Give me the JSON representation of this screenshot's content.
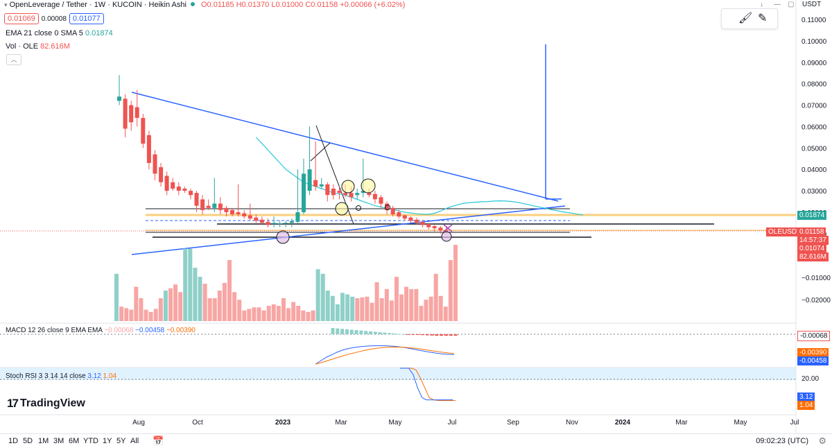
{
  "header": {
    "title": "OpenLeverage / Tether · 1W · KUCOIN · Heikin Ashi",
    "open": "O0.01185",
    "high": "H0.01370",
    "low": "L0.01000",
    "close": "C0.01158",
    "change": "+0.00066 (+6.02%)",
    "sell_price": "0.01069",
    "spread": "0.00008",
    "buy_price": "0.01077",
    "ema_label": "EMA 21 close 0 SMA 5",
    "ema_value": "0.01874",
    "vol_label": "Vol · OLE",
    "vol_value": "82.616M",
    "currency": "USDT"
  },
  "macd": {
    "label": "MACD 12 26 close 9 EMA EMA",
    "hist": "−0.00068",
    "macd": "−0.00458",
    "signal": "−0.00390",
    "tags": {
      "hist": "-0.00068",
      "signal": "-0.00390",
      "macd": "-0.00458"
    }
  },
  "stoch": {
    "label": "Stoch RSI 3 3 14 14 close",
    "k": "3.12",
    "d": "1.04",
    "level": "20.00"
  },
  "price_tags": {
    "ema": "0.01874",
    "symbol": "OLEUSDT",
    "last": "0.01158",
    "countdown": "14:57:37",
    "low": "0.01074",
    "vol": "82.616M"
  },
  "timeframes": [
    "1D",
    "5D",
    "1M",
    "3M",
    "6M",
    "YTD",
    "1Y",
    "5Y",
    "All"
  ],
  "clock": "09:02:23 (UTC)",
  "logo": "TradingView",
  "chart_data": {
    "type": "candlestick",
    "style": "Heikin Ashi",
    "y_ticks": [
      "0.11000",
      "0.10000",
      "0.09000",
      "0.08000",
      "0.07000",
      "0.06000",
      "0.05000",
      "0.04000",
      "0.03000",
      "0.02000",
      "0.01000",
      "−0.01000",
      "−0.02000"
    ],
    "x_ticks": [
      "Aug",
      "Oct",
      "2023",
      "Mar",
      "May",
      "Jul",
      "Sep",
      "Nov",
      "2024",
      "Mar",
      "May",
      "Jul"
    ],
    "ylim": [
      -0.025,
      0.113
    ],
    "series": [
      {
        "o": 0.072,
        "h": 0.084,
        "l": 0.07,
        "c": 0.074
      },
      {
        "o": 0.073,
        "h": 0.075,
        "l": 0.055,
        "c": 0.059
      },
      {
        "o": 0.07,
        "h": 0.072,
        "l": 0.058,
        "c": 0.062
      },
      {
        "o": 0.069,
        "h": 0.077,
        "l": 0.06,
        "c": 0.064
      },
      {
        "o": 0.064,
        "h": 0.066,
        "l": 0.05,
        "c": 0.052
      },
      {
        "o": 0.056,
        "h": 0.058,
        "l": 0.04,
        "c": 0.043
      },
      {
        "o": 0.047,
        "h": 0.049,
        "l": 0.035,
        "c": 0.038
      },
      {
        "o": 0.041,
        "h": 0.043,
        "l": 0.032,
        "c": 0.034
      },
      {
        "o": 0.037,
        "h": 0.039,
        "l": 0.028,
        "c": 0.03
      },
      {
        "o": 0.034,
        "h": 0.036,
        "l": 0.03,
        "c": 0.031
      },
      {
        "o": 0.032,
        "h": 0.034,
        "l": 0.028,
        "c": 0.03
      },
      {
        "o": 0.031,
        "h": 0.032,
        "l": 0.029,
        "c": 0.03
      },
      {
        "o": 0.03,
        "h": 0.031,
        "l": 0.026,
        "c": 0.028
      },
      {
        "o": 0.029,
        "h": 0.03,
        "l": 0.02,
        "c": 0.023
      },
      {
        "o": 0.026,
        "h": 0.028,
        "l": 0.019,
        "c": 0.021
      },
      {
        "o": 0.023,
        "h": 0.026,
        "l": 0.021,
        "c": 0.022
      },
      {
        "o": 0.022,
        "h": 0.036,
        "l": 0.02,
        "c": 0.024
      },
      {
        "o": 0.024,
        "h": 0.027,
        "l": 0.019,
        "c": 0.021
      },
      {
        "o": 0.022,
        "h": 0.023,
        "l": 0.018,
        "c": 0.02
      },
      {
        "o": 0.021,
        "h": 0.022,
        "l": 0.018,
        "c": 0.019
      },
      {
        "o": 0.02,
        "h": 0.033,
        "l": 0.018,
        "c": 0.019
      },
      {
        "o": 0.0195,
        "h": 0.021,
        "l": 0.017,
        "c": 0.018
      },
      {
        "o": 0.0185,
        "h": 0.024,
        "l": 0.016,
        "c": 0.017
      },
      {
        "o": 0.0175,
        "h": 0.019,
        "l": 0.015,
        "c": 0.016
      },
      {
        "o": 0.0165,
        "h": 0.018,
        "l": 0.014,
        "c": 0.015
      },
      {
        "o": 0.0155,
        "h": 0.017,
        "l": 0.013,
        "c": 0.014
      },
      {
        "o": 0.0145,
        "h": 0.018,
        "l": 0.013,
        "c": 0.015
      },
      {
        "o": 0.0145,
        "h": 0.016,
        "l": 0.013,
        "c": 0.0148
      },
      {
        "o": 0.0147,
        "h": 0.016,
        "l": 0.013,
        "c": 0.015
      },
      {
        "o": 0.015,
        "h": 0.017,
        "l": 0.013,
        "c": 0.0158
      },
      {
        "o": 0.0155,
        "h": 0.04,
        "l": 0.015,
        "c": 0.02
      },
      {
        "o": 0.02,
        "h": 0.045,
        "l": 0.019,
        "c": 0.038
      },
      {
        "o": 0.03,
        "h": 0.06,
        "l": 0.028,
        "c": 0.04
      },
      {
        "o": 0.035,
        "h": 0.053,
        "l": 0.03,
        "c": 0.032
      },
      {
        "o": 0.032,
        "h": 0.036,
        "l": 0.031,
        "c": 0.033
      },
      {
        "o": 0.033,
        "h": 0.034,
        "l": 0.025,
        "c": 0.028
      },
      {
        "o": 0.031,
        "h": 0.033,
        "l": 0.026,
        "c": 0.028
      },
      {
        "o": 0.03,
        "h": 0.032,
        "l": 0.026,
        "c": 0.029
      },
      {
        "o": 0.029,
        "h": 0.033,
        "l": 0.027,
        "c": 0.028
      },
      {
        "o": 0.029,
        "h": 0.032,
        "l": 0.025,
        "c": 0.027
      },
      {
        "o": 0.028,
        "h": 0.031,
        "l": 0.026,
        "c": 0.029
      },
      {
        "o": 0.029,
        "h": 0.045,
        "l": 0.027,
        "c": 0.03
      },
      {
        "o": 0.029,
        "h": 0.031,
        "l": 0.027,
        "c": 0.028
      },
      {
        "o": 0.0285,
        "h": 0.03,
        "l": 0.024,
        "c": 0.026
      },
      {
        "o": 0.027,
        "h": 0.028,
        "l": 0.022,
        "c": 0.024
      },
      {
        "o": 0.024,
        "h": 0.025,
        "l": 0.019,
        "c": 0.021
      },
      {
        "o": 0.022,
        "h": 0.023,
        "l": 0.018,
        "c": 0.019
      },
      {
        "o": 0.02,
        "h": 0.021,
        "l": 0.017,
        "c": 0.018
      },
      {
        "o": 0.0185,
        "h": 0.019,
        "l": 0.016,
        "c": 0.017
      },
      {
        "o": 0.0175,
        "h": 0.018,
        "l": 0.015,
        "c": 0.016
      },
      {
        "o": 0.0165,
        "h": 0.0175,
        "l": 0.014,
        "c": 0.015
      },
      {
        "o": 0.0155,
        "h": 0.0165,
        "l": 0.013,
        "c": 0.014
      },
      {
        "o": 0.0145,
        "h": 0.015,
        "l": 0.012,
        "c": 0.013
      },
      {
        "o": 0.0135,
        "h": 0.014,
        "l": 0.011,
        "c": 0.0125
      },
      {
        "o": 0.0128,
        "h": 0.0135,
        "l": 0.01,
        "c": 0.0115
      },
      {
        "o": 0.0118,
        "h": 0.0137,
        "l": 0.01,
        "c": 0.0116
      }
    ],
    "ema": [
      0.055,
      0.052,
      0.049,
      0.046,
      0.043,
      0.04,
      0.038,
      0.036,
      0.034,
      0.033,
      0.032,
      0.031,
      0.03,
      0.029,
      0.0285,
      0.028,
      0.027,
      0.026,
      0.025,
      0.024,
      0.023,
      0.0225,
      0.0218,
      0.0212,
      0.0206,
      0.02,
      0.0196,
      0.0193,
      0.0191,
      0.019,
      0.0195,
      0.0205,
      0.0218,
      0.0228,
      0.0236,
      0.0242,
      0.0245,
      0.0247,
      0.0249,
      0.025,
      0.0252,
      0.0253,
      0.0252,
      0.025,
      0.0246,
      0.024,
      0.0234,
      0.0228,
      0.0222,
      0.0216,
      0.021,
      0.0205,
      0.02,
      0.0196,
      0.0191,
      0.0187
    ],
    "volume": [
      0.62,
      0.19,
      0.17,
      0.15,
      0.45,
      0.3,
      0.15,
      0.12,
      0.16,
      0.3,
      0.4,
      0.43,
      0.48,
      0.38,
      0.95,
      0.95,
      0.7,
      0.58,
      0.49,
      0.3,
      0.3,
      0.4,
      0.5,
      0.8,
      0.38,
      0.28,
      0.14,
      0.16,
      0.18,
      0.18,
      0.14,
      0.2,
      0.22,
      0.2,
      0.3,
      0.17,
      0.25,
      0.2,
      0.14,
      0.12,
      0.14,
      0.68,
      0.62,
      0.4,
      0.33,
      0.22,
      0.37,
      0.35,
      0.32,
      0.3,
      0.31,
      0.32,
      0.24,
      0.51,
      0.3,
      0.42,
      0.27,
      0.58,
      0.35,
      0.45,
      0.42,
      0.42,
      0.2,
      0.28,
      0.32,
      0.62,
      0.33,
      0.19,
      0.8,
      1.0
    ],
    "macd_hist": [
      0.003,
      0.0028,
      0.0026,
      0.0024,
      0.0022,
      0.002,
      0.0018,
      0.0016,
      0.0014,
      0.0012,
      0.001,
      0.0008,
      0.0006,
      0.0004,
      0.0002,
      0.0001,
      -0.0001,
      -0.0002,
      -0.0003,
      -0.0004,
      -0.0005,
      -0.0006,
      -0.0007,
      -0.0007,
      -0.0007,
      -0.0007,
      -0.00068
    ],
    "macd_line": [
      -0.01,
      -0.008,
      -0.006,
      -0.0045,
      -0.003,
      -0.0018,
      -0.001,
      -0.0004,
      0.0,
      0.0003,
      0.0005,
      0.0006,
      0.0006,
      0.0005,
      0.0003,
      0.0,
      -0.0004,
      -0.001,
      -0.0016,
      -0.0022,
      -0.0028,
      -0.0033,
      -0.0038,
      -0.0042,
      -0.0044,
      -0.00458
    ],
    "signal_line": [
      -0.01,
      -0.0092,
      -0.0082,
      -0.0072,
      -0.0062,
      -0.0052,
      -0.0043,
      -0.0035,
      -0.0027,
      -0.002,
      -0.0014,
      -0.0009,
      -0.0005,
      -0.0003,
      -0.0002,
      -0.0002,
      -0.0003,
      -0.0006,
      -0.0009,
      -0.0013,
      -0.0018,
      -0.0023,
      -0.0028,
      -0.0032,
      -0.0036,
      -0.0039
    ],
    "stoch_k": [
      100,
      100,
      100,
      80,
      40,
      10,
      3,
      3,
      3,
      3,
      3,
      3,
      3.12
    ],
    "stoch_d": [
      100,
      100,
      100,
      95,
      70,
      40,
      10,
      3,
      1,
      1,
      1,
      1,
      1.04
    ]
  }
}
